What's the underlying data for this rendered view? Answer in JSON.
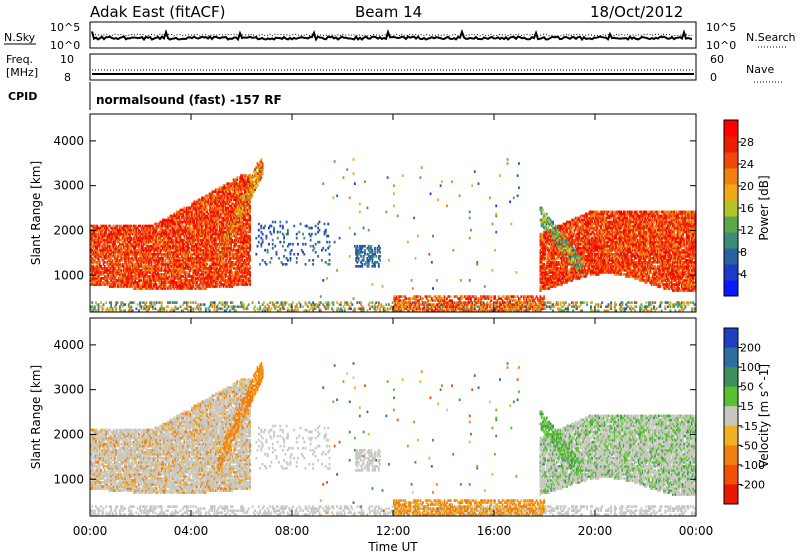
{
  "header": {
    "station": "Adak East (fitACF)",
    "beam": "Beam 14",
    "date": "18/Oct/2012"
  },
  "status_panels": {
    "nsky_label": "N.Sky",
    "nsearch_label": "N.Search",
    "nsky_ticks": [
      "10^5",
      "10^0"
    ],
    "nsearch_ticks": [
      "10^5",
      "10^0"
    ],
    "freq_label_1": "Freq.",
    "freq_label_2": "[MHz]",
    "freq_ticks": [
      "10",
      "8"
    ],
    "nave_label": "Nave",
    "nave_ticks": [
      "60",
      "0"
    ],
    "cpid_label": "CPID",
    "cpid_text": "normalsound (fast) -157 RF"
  },
  "colors": {
    "power_scale": [
      "#0a1aff",
      "#1a3cc8",
      "#2a62a0",
      "#3c8c78",
      "#5aa84a",
      "#b4c428",
      "#f0a818",
      "#f08010",
      "#f04a08",
      "#e82000",
      "#ff0000"
    ],
    "velocity_scale": [
      "#1f3fc0",
      "#2e6fa0",
      "#3d8f5e",
      "#59c12f",
      "#c8c8c0",
      "#f0b020",
      "#f08010",
      "#f05008",
      "#e81800"
    ]
  },
  "chart_data": [
    {
      "type": "heatmap",
      "name": "power",
      "xlabel": "",
      "ylabel": "Slant Range [km]",
      "xlim": [
        0,
        24
      ],
      "ylim": [
        180,
        4600
      ],
      "y_ticks": [
        1000,
        2000,
        3000,
        4000
      ],
      "colorbar": {
        "label": "Power [dB]",
        "ticks": [
          "4",
          "8",
          "12",
          "16",
          "20",
          "24",
          "28"
        ],
        "range": [
          0,
          32
        ]
      }
    },
    {
      "type": "heatmap",
      "name": "velocity",
      "xlabel": "Time UT",
      "ylabel": "Slant Range [km]",
      "xlim": [
        0,
        24
      ],
      "ylim": [
        180,
        4600
      ],
      "x_ticks": [
        "00:00",
        "04:00",
        "08:00",
        "12:00",
        "16:00",
        "20:00",
        "00:00"
      ],
      "y_ticks": [
        1000,
        2000,
        3000,
        4000
      ],
      "colorbar": {
        "label": "Velocity [m s^-1]",
        "ticks": [
          "200",
          "100",
          "50",
          "15",
          "-15",
          "-50",
          "-100",
          "-200"
        ]
      }
    }
  ]
}
